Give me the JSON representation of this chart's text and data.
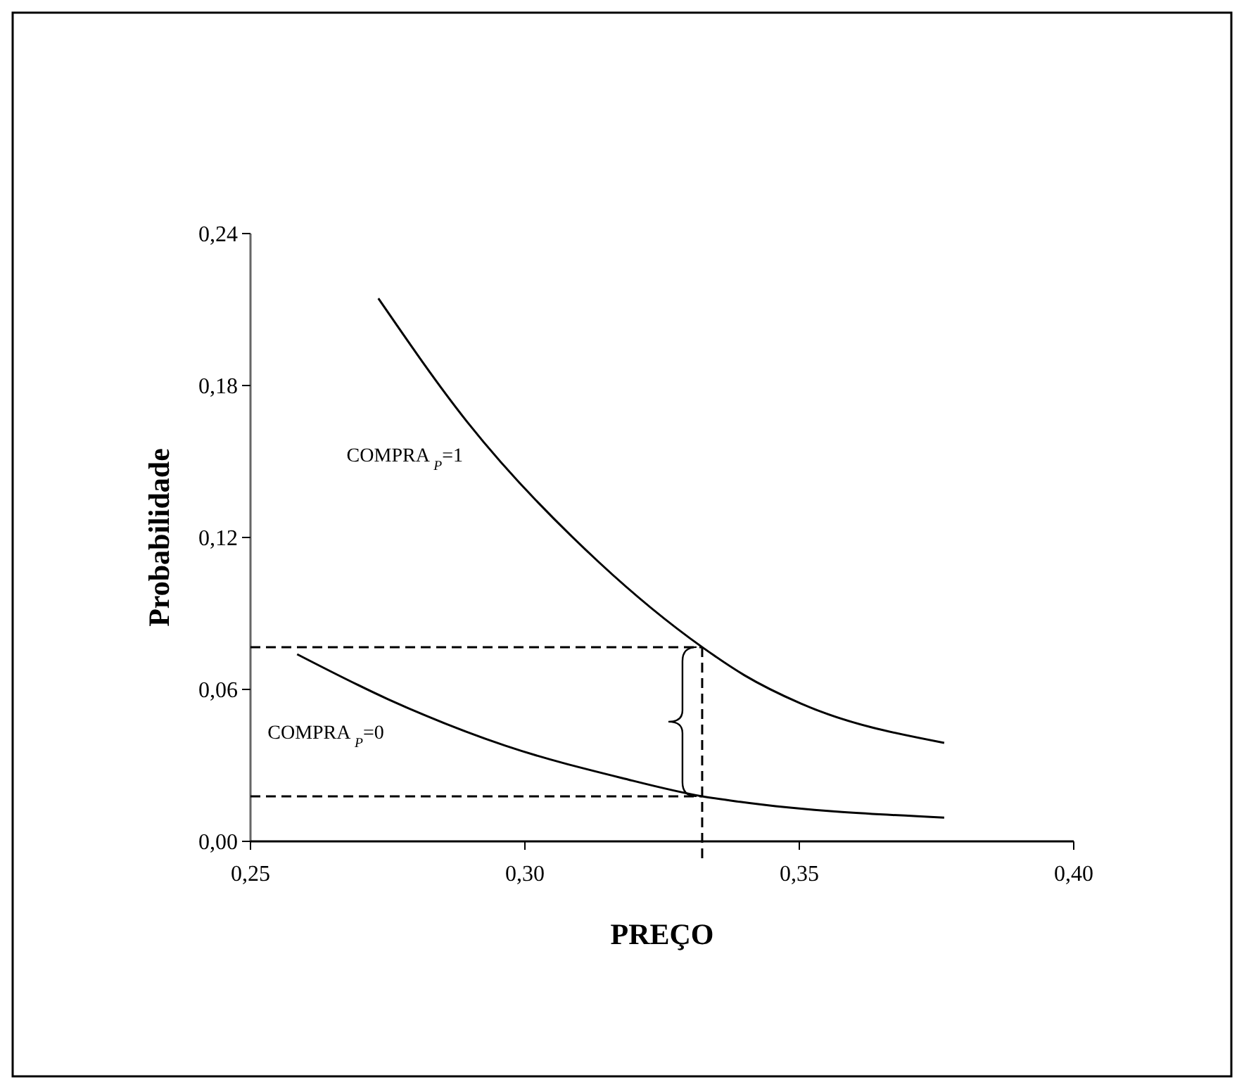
{
  "chart_data": {
    "type": "line",
    "xlabel": "PREÇO",
    "ylabel": "Probabilidade",
    "xlim": [
      0.25,
      0.4
    ],
    "xticks": [
      {
        "value": 0.25,
        "label": "0,25"
      },
      {
        "value": 0.3,
        "label": "0,30"
      },
      {
        "value": 0.35,
        "label": "0,35"
      },
      {
        "value": 0.4,
        "label": "0,40"
      }
    ],
    "ylim": [
      0,
      0.24
    ],
    "yticks": [
      {
        "value": 0,
        "label": "0,00"
      },
      {
        "value": 0.06,
        "label": "0,06"
      },
      {
        "value": 0.12,
        "label": "0,12"
      },
      {
        "value": 0.18,
        "label": "0,18"
      },
      {
        "value": 0.24,
        "label": "0,24"
      }
    ],
    "series": [
      {
        "name": "COMPRA $_{P}$=1",
        "color": "#000000",
        "x": [
          0.2733,
          0.2895,
          0.3136,
          0.3323,
          0.34,
          0.3503,
          0.3764
        ],
        "values": [
          0.2144,
          0.1656,
          0.11,
          0.0767,
          0.0656,
          0.0544,
          0.0389
        ]
      },
      {
        "name": "COMPRA $_{P}$=0",
        "color": "#000000",
        "x": [
          0.2585,
          0.2751,
          0.2964,
          0.3177,
          0.3323,
          0.3392,
          0.3764
        ],
        "values": [
          0.0739,
          0.0561,
          0.0378,
          0.025,
          0.0178,
          0.0156,
          0.0094
        ]
      }
    ],
    "ref_lines": [
      {
        "axis": "y",
        "value": 0.0767,
        "line_style": "dashed"
      },
      {
        "axis": "y",
        "value": 0.0178,
        "line_style": "dashed"
      },
      {
        "axis": "x",
        "value": 0.3323,
        "line_style": "dashed"
      }
    ],
    "grid": false,
    "marker": "none",
    "line_style": "solid"
  }
}
